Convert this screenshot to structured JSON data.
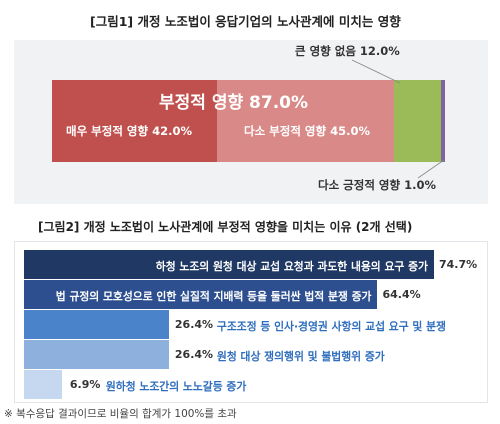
{
  "figure1": {
    "title": "[그림1] 개정 노조법이 응답기업의 노사관계에 미치는 영향",
    "summary_label": "부정적 영향 87.0%",
    "colors": {
      "very_negative": "#c0504d",
      "somewhat_negative": "#d98a88",
      "no_effect": "#9bbb59",
      "somewhat_positive": "#8064a2",
      "background": "#f1f2f4"
    },
    "chart_data": {
      "type": "bar",
      "stacked": true,
      "orientation": "horizontal",
      "unit": "%",
      "series": [
        {
          "name": "매우 부정적 영향",
          "value": 42.0,
          "label": "매우 부정적 영향 42.0%"
        },
        {
          "name": "다소 부정적 영향",
          "value": 45.0,
          "label": "다소 부정적 영향 45.0%"
        },
        {
          "name": "큰 영향 없음",
          "value": 12.0,
          "label": "큰 영향 없음 12.0%"
        },
        {
          "name": "다소 긍정적 영향",
          "value": 1.0,
          "label": "다소 긍정적 영향 1.0%"
        }
      ]
    }
  },
  "figure2": {
    "title": "[그림2] 개정 노조법이 노사관계에 부정적 영향을 미치는 이유 (2개 선택)",
    "chart_data": {
      "type": "bar",
      "orientation": "horizontal",
      "unit": "%",
      "xlim": [
        0,
        74.7
      ],
      "categories": [
        "하청 노조의 원청 대상 교섭 요청과 과도한 내용의 요구 증가",
        "법 규정의 모호성으로 인한 실질적 지배력 등을 둘러싼 법적 분쟁 증가",
        "구조조정 등 인사·경영권 사항의 교섭 요구 및 분쟁",
        "원청 대상 쟁의행위 및 불법행위 증가",
        "원하청 노조간의 노노갈등 증가"
      ],
      "values": [
        74.7,
        64.4,
        26.4,
        26.4,
        6.9
      ],
      "value_labels": [
        "74.7%",
        "64.4%",
        "26.4%",
        "26.4%",
        "6.9%"
      ],
      "colors": [
        "#1f3864",
        "#2e4f8f",
        "#4a83c9",
        "#8eb0dd",
        "#c6d8ef"
      ]
    }
  },
  "footnote": "※ 복수응답 결과이므로 비율의 합계가 100%를 초과"
}
